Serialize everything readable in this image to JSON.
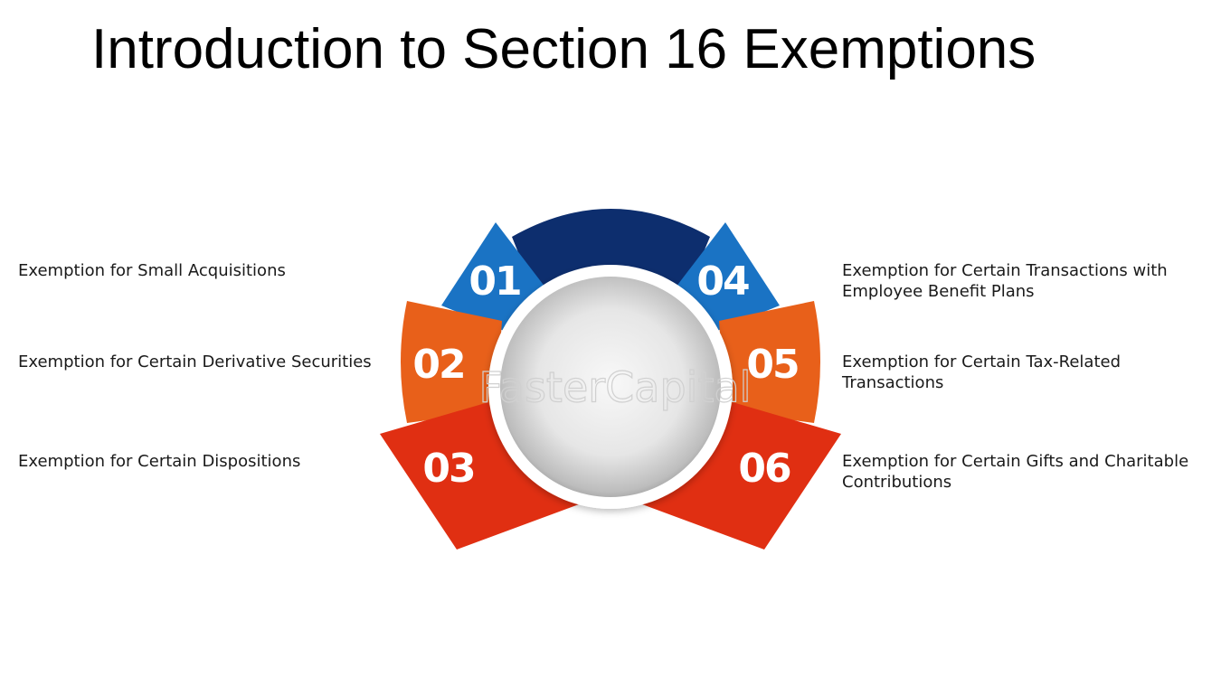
{
  "title": "Introduction to Section 16 Exemptions",
  "watermark": "FasterCapital",
  "colors": {
    "dark_blue": "#0d2e6e",
    "blue": "#1a73c4",
    "orange": "#e8601a",
    "red": "#e02f12",
    "sphere": "#e6e6e6"
  },
  "items": [
    {
      "number": "01",
      "label": "Exemption for Small Acquisitions"
    },
    {
      "number": "02",
      "label": "Exemption for Certain Derivative Securities"
    },
    {
      "number": "03",
      "label": "Exemption for Certain Dispositions"
    },
    {
      "number": "04",
      "label": "Exemption for Certain Transactions with Employee Benefit Plans"
    },
    {
      "number": "05",
      "label": "Exemption for Certain Tax-Related Transactions"
    },
    {
      "number": "06",
      "label": "Exemption for Certain Gifts and Charitable Contributions"
    }
  ]
}
